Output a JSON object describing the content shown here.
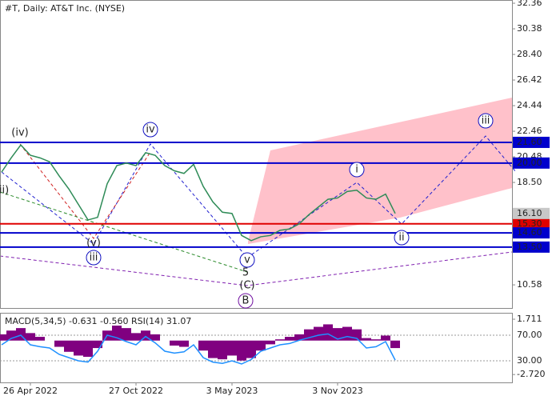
{
  "chart_data": [
    {
      "type": "line",
      "title": "#T, Daily:  AT&T Inc. (NYSE)",
      "color": "#2e8b57",
      "categories": [
        null,
        null,
        null,
        "26 Apr 2022",
        null,
        null,
        null,
        null,
        null,
        null,
        null,
        null,
        null,
        null,
        "27 Oct 2022",
        null,
        null,
        null,
        null,
        null,
        null,
        null,
        null,
        null,
        "3 May 2023",
        null,
        null,
        null,
        null,
        null,
        null,
        null,
        null,
        null,
        null,
        "3 Nov 2023",
        null,
        null,
        null,
        null,
        null,
        null
      ],
      "values": [
        19.3,
        20.4,
        21.4,
        20.6,
        20.4,
        20.1,
        19.0,
        18.0,
        16.8,
        15.6,
        15.8,
        18.4,
        19.8,
        20.0,
        19.8,
        20.8,
        20.6,
        19.8,
        19.4,
        19.2,
        19.9,
        18.2,
        17.0,
        16.2,
        16.1,
        14.4,
        14.0,
        14.3,
        14.4,
        14.8,
        14.9,
        15.3,
        16.0,
        16.6,
        17.2,
        17.3,
        17.8,
        17.9,
        17.3,
        17.2,
        17.6,
        16.1
      ],
      "last_price_label": "16.10",
      "ylim": [
        8.79,
        32.61
      ],
      "yticks": [
        32.36,
        30.38,
        {
          "value": 28.4,
          "label": "28.40"
        },
        26.42,
        24.44,
        22.46,
        20.48,
        {
          "value": 18.5,
          "label": "18.50"
        },
        10.58
      ],
      "levels": [
        {
          "value": 21.6,
          "label": "21.60",
          "color": "#0000cc"
        },
        {
          "value": 20,
          "label": "20.00",
          "color": "#0000cc"
        },
        {
          "value": 15.3,
          "label": "15.30",
          "color": "#e00000"
        },
        {
          "value": 14.6,
          "label": "14.60",
          "color": "#0000cc"
        },
        {
          "value": 13.5,
          "label": "13.50",
          "color": "#0000cc"
        }
      ],
      "annotations": [
        {
          "text": "(iv)",
          "color": "#e00000"
        },
        {
          "text": "ii)",
          "color": "#e00000"
        },
        {
          "text": "(v)",
          "color": "#e00000"
        },
        {
          "text": "iii",
          "color": "#1010c0",
          "circled": true
        },
        {
          "text": "iv",
          "color": "#1010c0",
          "circled": true
        },
        {
          "text": "v",
          "color": "#1010c0",
          "circled": true
        },
        {
          "text": "5",
          "color": "#b03030"
        },
        {
          "text": "(C)",
          "color": "#2a8a2a"
        },
        {
          "text": "B",
          "color": "#7010a0",
          "circled": true
        },
        {
          "text": "i",
          "color": "#1010c0",
          "circled": true
        },
        {
          "text": "ii",
          "color": "#1010c0",
          "circled": true
        },
        {
          "text": "iii",
          "color": "#1010c0",
          "circled": true
        }
      ]
    },
    {
      "type": "macd-rsi",
      "title": "MACD(5,34,5) -0.631 -0.560 RSI(14) 31.07",
      "series": [
        {
          "name": "MACD",
          "color": "#800080",
          "values": [
            0.5,
            0.8,
            1.0,
            0.6,
            0.3,
            0,
            -0.5,
            -0.9,
            -1.2,
            -1.3,
            -0.6,
            0.8,
            1.2,
            1.0,
            0.6,
            0.8,
            0.5,
            0,
            -0.4,
            -0.5,
            0,
            -0.8,
            -1.4,
            -1.5,
            -1.2,
            -1.6,
            -1.4,
            -0.8,
            -0.3,
            0.1,
            0.3,
            0.5,
            0.9,
            1.1,
            1.3,
            1.0,
            1.1,
            0.9,
            0.2,
            0.1,
            0.4,
            -0.6
          ]
        },
        {
          "name": "RSI",
          "color": "#1e90ff",
          "axis": "y2",
          "values": [
            55,
            65,
            70,
            55,
            52,
            50,
            40,
            35,
            30,
            28,
            45,
            70,
            66,
            60,
            55,
            68,
            58,
            45,
            42,
            44,
            55,
            35,
            28,
            26,
            30,
            25,
            32,
            45,
            50,
            55,
            57,
            62,
            66,
            70,
            72,
            64,
            68,
            65,
            50,
            52,
            60,
            31.07
          ]
        }
      ],
      "ylim": [
        -3.35,
        2.225
      ],
      "yticks": [
        1.711,
        {
          "value": -2.72,
          "label": "-2.720"
        }
      ],
      "y2lim": [
        -3.75,
        105
      ],
      "y2ticks": [
        {
          "value": 70,
          "label": "70.00"
        },
        {
          "value": 30,
          "label": "30.00"
        }
      ]
    }
  ]
}
